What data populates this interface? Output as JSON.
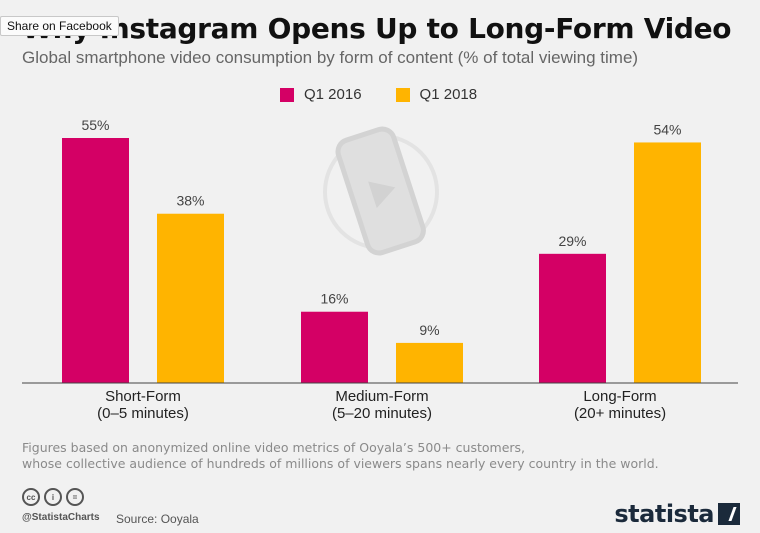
{
  "share": {
    "label": "Share on Facebook"
  },
  "title": "Why Instagram Opens Up to Long-Form Video",
  "subtitle": "Global smartphone video consumption by form of content (% of total viewing time)",
  "footnote": {
    "line1": "Figures based on anonymized online video metrics of Ooyala’s 500+ customers,",
    "line2": "whose collective audience of hundreds of millions of viewers spans nearly every country in the world."
  },
  "footer": {
    "handle": "@StatistaCharts",
    "source": "Source: Ooyala",
    "brand": "statista",
    "cc_icons": [
      "cc-icon",
      "by-icon",
      "nd-icon"
    ]
  },
  "colors": {
    "q1_2016": "#d40065",
    "q1_2018": "#ffb400"
  },
  "chart_data": {
    "type": "bar",
    "title": "Why Instagram Opens Up to Long-Form Video",
    "subtitle": "Global smartphone video consumption by form of content (% of total viewing time)",
    "categories": [
      "Short-Form",
      "Medium-Form",
      "Long-Form"
    ],
    "category_sublabels": [
      "(0–5 minutes)",
      "(5–20 minutes)",
      "(20+ minutes)"
    ],
    "series": [
      {
        "name": "Q1 2016",
        "values": [
          55,
          16,
          29
        ],
        "color": "#d40065"
      },
      {
        "name": "Q1 2018",
        "values": [
          38,
          9,
          54
        ],
        "color": "#ffb400"
      }
    ],
    "value_suffix": "%",
    "ylim": [
      0,
      55
    ],
    "grid": false,
    "legend": "top-center"
  }
}
